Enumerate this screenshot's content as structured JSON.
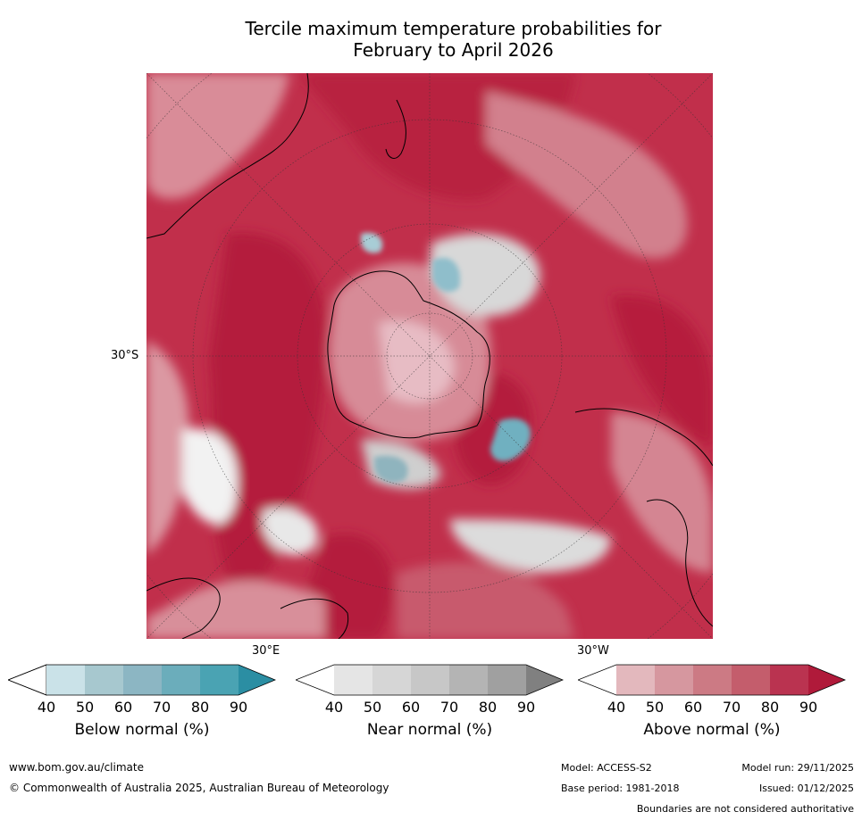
{
  "title": {
    "line1": "Tercile maximum temperature probabilities for",
    "line2": "February to April 2026"
  },
  "map": {
    "labels": {
      "lat_30s": "30°S",
      "lon_30e": "30°E",
      "lon_30w": "30°W"
    },
    "colors": {
      "ocean_base": "#bf2d47",
      "high": "#b51b3d",
      "mid": "#d27a8a",
      "low": "#e6b7c0",
      "near": "#d6d6d6",
      "below": "#8fbecb"
    }
  },
  "colorbars": [
    {
      "name": "below",
      "title": "Below normal (%)",
      "ticks": [
        "40",
        "50",
        "60",
        "70",
        "80",
        "90"
      ],
      "colors": [
        "#ffffff",
        "#cae2e8",
        "#a7c8cf",
        "#8cb6c3",
        "#6badbb",
        "#4aa3b3",
        "#2b8ea3"
      ]
    },
    {
      "name": "near",
      "title": "Near normal (%)",
      "ticks": [
        "40",
        "50",
        "60",
        "70",
        "80",
        "90"
      ],
      "colors": [
        "#ffffff",
        "#e5e5e5",
        "#d6d6d6",
        "#c7c7c7",
        "#b4b4b4",
        "#a0a0a0",
        "#808080"
      ]
    },
    {
      "name": "above",
      "title": "Above normal (%)",
      "ticks": [
        "40",
        "50",
        "60",
        "70",
        "80",
        "90"
      ],
      "colors": [
        "#ffffff",
        "#e3b8bd",
        "#d6979f",
        "#cc7a84",
        "#c45d6c",
        "#ba3350",
        "#b01a3a"
      ]
    }
  ],
  "footer": {
    "website": "www.bom.gov.au/climate",
    "copyright": "© Commonwealth of Australia 2025, Australian Bureau of Meteorology",
    "model": "Model: ACCESS-S2",
    "model_run": "Model run: 29/11/2025",
    "base_period": "Base period: 1981-2018",
    "issued": "Issued: 01/12/2025",
    "disclaimer": "Boundaries are not considered authoritative"
  }
}
